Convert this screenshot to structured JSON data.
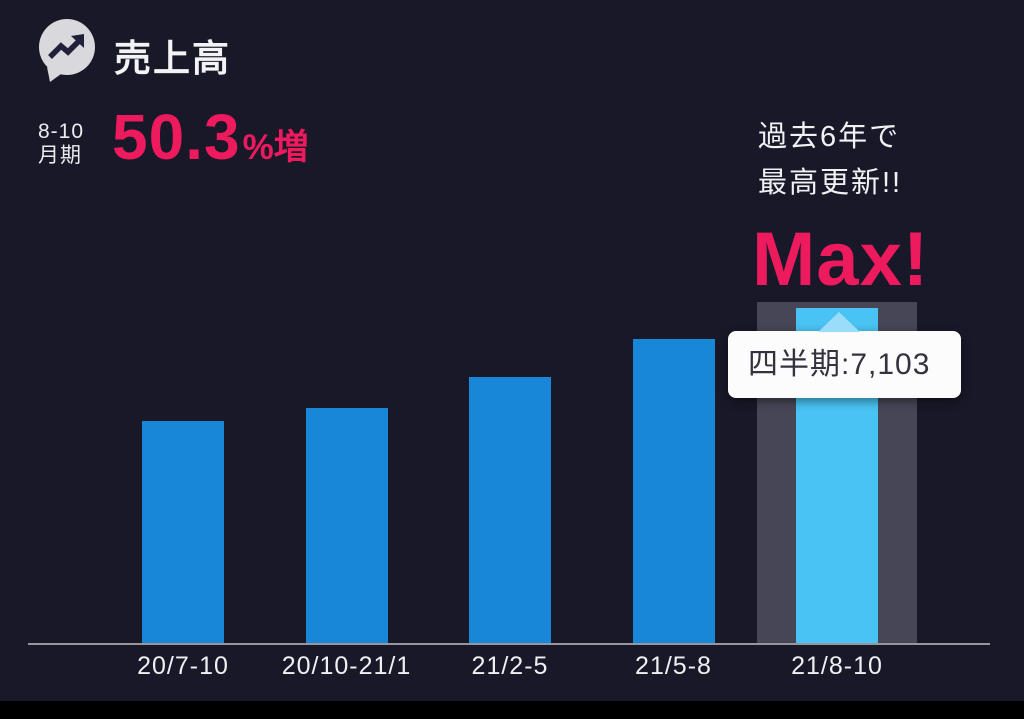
{
  "header": {
    "title": "売上高"
  },
  "stat": {
    "period_line1": "8-10",
    "period_line2": "月期",
    "value": "50.3",
    "suffix": "%増"
  },
  "note": {
    "line1": "過去6年で",
    "line2": "最高更新!!"
  },
  "max_label": "Max!",
  "tooltip": {
    "text": "四半期:7,103"
  },
  "colors": {
    "background": "#181829",
    "accent_pink": "#ee1a5e",
    "bar_blue": "#1987d7",
    "bar_highlight_blue": "#49c3f3",
    "highlight_band": "rgba(168,168,184,0.32)",
    "axis_gray": "#96969f",
    "text_white": "#f1f1f3"
  },
  "chart_data": {
    "type": "bar",
    "title": "売上高 (四半期)",
    "categories": [
      "20/7-10",
      "20/10-21/1",
      "21/2-5",
      "21/5-8",
      "21/8-10"
    ],
    "values": [
      4726,
      5000,
      5650,
      6460,
      7103
    ],
    "highlight_index": 4,
    "highlight_value_label": "四半期:7,103",
    "xlabel": "四半期",
    "ylabel": "売上高",
    "ylim": [
      0,
      7103
    ],
    "grid": false,
    "legend": false,
    "bar_color": "#1987d7",
    "highlight_bar_color": "#49c3f3",
    "annotations": [
      "8-10月期 50.3%増",
      "過去6年で最高更新!!",
      "Max!"
    ]
  }
}
